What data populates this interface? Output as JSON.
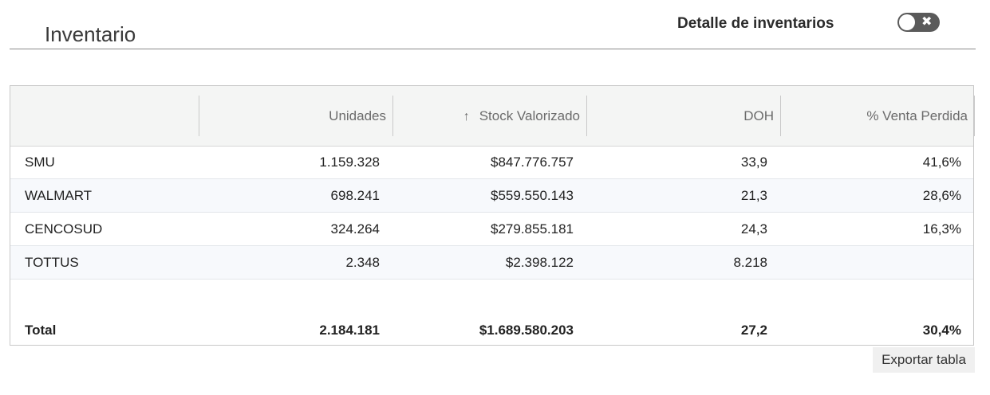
{
  "header": {
    "title": "Inventario",
    "toggle_label": "Detalle de inventarios",
    "toggle_state": "off",
    "toggle_icon": "close-icon"
  },
  "table": {
    "columns": [
      "",
      "Unidades",
      "Stock Valorizado",
      "DOH",
      "% Venta Perdida"
    ],
    "sort_icon": "↑",
    "rows": [
      [
        "SMU",
        "1.159.328",
        "$847.776.757",
        "33,9",
        "41,6%"
      ],
      [
        "WALMART",
        "698.241",
        "$559.550.143",
        "21,3",
        "28,6%"
      ],
      [
        "CENCOSUD",
        "324.264",
        "$279.855.181",
        "24,3",
        "16,3%"
      ],
      [
        "TOTTUS",
        "2.348",
        "$2.398.122",
        "8.218",
        ""
      ]
    ],
    "total": [
      "Total",
      "2.184.181",
      "$1.689.580.203",
      "27,2",
      "30,4%"
    ]
  },
  "export_label": "Exportar tabla"
}
